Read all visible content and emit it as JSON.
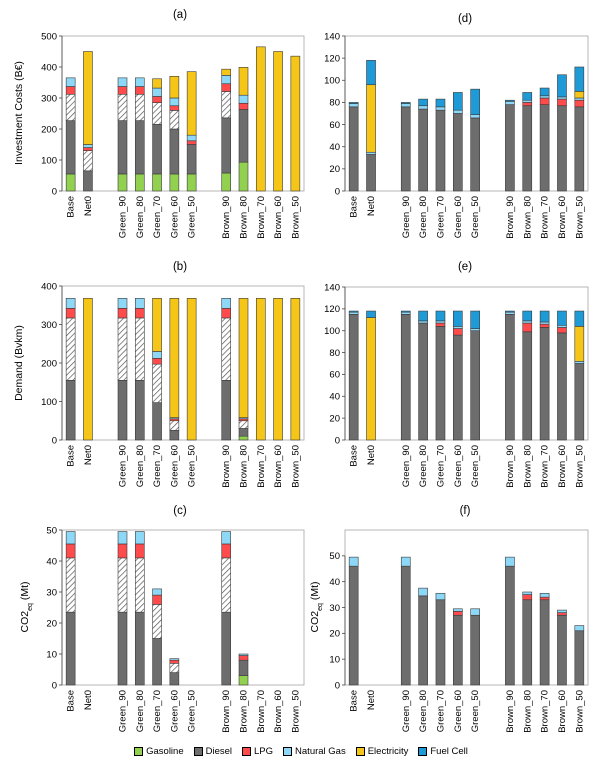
{
  "colors": {
    "Gasoline": "#92d050",
    "Diesel": "#6d6d6d",
    "Diesel_hatched": "hatched",
    "LPG": "#ff4b4b",
    "Natural Gas": "#8dd7f7",
    "Electricity": "#f5c518",
    "Fuel Cell": "#1e9bd7"
  },
  "legend": [
    "Gasoline",
    "Diesel",
    "LPG",
    "Natural Gas",
    "Electricity",
    "Fuel Cell"
  ],
  "chart_data": [
    {
      "panel": "(a)",
      "type": "bar",
      "stacked": true,
      "ylabel": "Investment Costs (B€)",
      "ylim": [
        0,
        500
      ],
      "yticks": [
        0,
        100,
        200,
        300,
        400,
        500
      ],
      "categories": [
        "Base",
        "Net0",
        "",
        "Green_90",
        "Green_80",
        "Green_70",
        "Green_60",
        "Green_50",
        "",
        "Brown_90",
        "Brown_80",
        "Brown_70",
        "Brown_60",
        "Brown_50"
      ],
      "series": [
        {
          "name": "Gasoline",
          "values": [
            55,
            0,
            0,
            55,
            55,
            55,
            55,
            55,
            0,
            58,
            93,
            0,
            0,
            0
          ]
        },
        {
          "name": "Diesel",
          "values": [
            172,
            65,
            0,
            172,
            172,
            160,
            145,
            95,
            0,
            178,
            170,
            0,
            0,
            0
          ]
        },
        {
          "name": "Diesel (hatched)",
          "values": [
            85,
            65,
            0,
            85,
            85,
            70,
            60,
            0,
            0,
            85,
            0,
            0,
            0,
            0
          ]
        },
        {
          "name": "LPG",
          "values": [
            25,
            10,
            0,
            25,
            25,
            20,
            15,
            12,
            0,
            25,
            20,
            0,
            0,
            0
          ]
        },
        {
          "name": "Natural Gas",
          "values": [
            28,
            10,
            0,
            28,
            28,
            27,
            25,
            18,
            0,
            27,
            26,
            0,
            0,
            0
          ]
        },
        {
          "name": "Electricity",
          "values": [
            0,
            300,
            0,
            0,
            0,
            30,
            70,
            205,
            0,
            20,
            90,
            465,
            450,
            435
          ]
        },
        {
          "name": "Fuel Cell",
          "values": [
            0,
            0,
            0,
            0,
            0,
            0,
            0,
            0,
            0,
            0,
            0,
            0,
            0,
            0
          ]
        }
      ]
    },
    {
      "panel": "(d)",
      "type": "bar",
      "stacked": true,
      "ylabel": "",
      "ylim": [
        0,
        140
      ],
      "yticks": [
        0,
        20,
        40,
        60,
        80,
        100,
        120,
        140
      ],
      "categories": [
        "Base",
        "Net0",
        "",
        "Green_90",
        "Green_80",
        "Green_70",
        "Green_60",
        "Green_50",
        "",
        "Brown_90",
        "Brown_80",
        "Brown_70",
        "Brown_60",
        "Brown_50"
      ],
      "series": [
        {
          "name": "Gasoline",
          "values": [
            0,
            0,
            0,
            0,
            0,
            0,
            0,
            0,
            0,
            0,
            0,
            0,
            0,
            0
          ]
        },
        {
          "name": "Diesel",
          "values": [
            76,
            33,
            0,
            76,
            74,
            73,
            70,
            66,
            0,
            78,
            77,
            78,
            77,
            76
          ]
        },
        {
          "name": "Diesel (hatched)",
          "values": [
            0,
            0,
            0,
            0,
            0,
            0,
            0,
            0,
            0,
            0,
            0,
            0,
            0,
            0
          ]
        },
        {
          "name": "LPG",
          "values": [
            0,
            0,
            0,
            0,
            0,
            0,
            0,
            0,
            0,
            0,
            3,
            6,
            6,
            6
          ]
        },
        {
          "name": "Natural Gas",
          "values": [
            3,
            2,
            0,
            3,
            3,
            3,
            3,
            3,
            0,
            3,
            2,
            2,
            2,
            2
          ]
        },
        {
          "name": "Electricity",
          "values": [
            0,
            61,
            0,
            0,
            0,
            0,
            0,
            0,
            0,
            0,
            0,
            0,
            0,
            6
          ]
        },
        {
          "name": "Fuel Cell",
          "values": [
            1,
            22,
            0,
            1,
            6,
            7,
            16,
            23,
            0,
            1,
            7,
            7,
            20,
            22
          ]
        }
      ]
    },
    {
      "panel": "(b)",
      "type": "bar",
      "stacked": true,
      "ylabel": "Demand (Bvkm)",
      "ylim": [
        0,
        400
      ],
      "yticks": [
        0,
        100,
        200,
        300,
        400
      ],
      "categories": [
        "Base",
        "Net0",
        "",
        "Green_90",
        "Green_80",
        "Green_70",
        "Green_60",
        "Green_50",
        "",
        "Brown_90",
        "Brown_80",
        "Brown_70",
        "Brown_60",
        "Brown_50"
      ],
      "series": [
        {
          "name": "Gasoline",
          "values": [
            0,
            0,
            0,
            0,
            0,
            0,
            0,
            0,
            0,
            0,
            10,
            0,
            0,
            0
          ]
        },
        {
          "name": "Diesel",
          "values": [
            155,
            0,
            0,
            155,
            155,
            97,
            25,
            0,
            0,
            155,
            20,
            0,
            0,
            0
          ]
        },
        {
          "name": "Diesel (hatched)",
          "values": [
            162,
            0,
            0,
            162,
            162,
            100,
            25,
            0,
            0,
            162,
            20,
            0,
            0,
            0
          ]
        },
        {
          "name": "LPG",
          "values": [
            25,
            0,
            0,
            25,
            25,
            15,
            5,
            0,
            0,
            25,
            5,
            0,
            0,
            0
          ]
        },
        {
          "name": "Natural Gas",
          "values": [
            26,
            0,
            0,
            26,
            26,
            18,
            3,
            0,
            0,
            26,
            3,
            0,
            0,
            0
          ]
        },
        {
          "name": "Electricity",
          "values": [
            0,
            368,
            0,
            0,
            0,
            138,
            310,
            368,
            0,
            0,
            310,
            368,
            368,
            368
          ]
        },
        {
          "name": "Fuel Cell",
          "values": [
            0,
            0,
            0,
            0,
            0,
            0,
            0,
            0,
            0,
            0,
            0,
            0,
            0,
            0
          ]
        }
      ]
    },
    {
      "panel": "(e)",
      "type": "bar",
      "stacked": true,
      "ylabel": "",
      "ylim": [
        0,
        140
      ],
      "yticks": [
        0,
        20,
        40,
        60,
        80,
        100,
        120,
        140
      ],
      "categories": [
        "Base",
        "Net0",
        "",
        "Green_90",
        "Green_80",
        "Green_70",
        "Green_60",
        "Green_50",
        "",
        "Brown_90",
        "Brown_80",
        "Brown_70",
        "Brown_60",
        "Brown_50"
      ],
      "series": [
        {
          "name": "Gasoline",
          "values": [
            0,
            0,
            0,
            0,
            0,
            0,
            0,
            0,
            0,
            0,
            0,
            0,
            0,
            0
          ]
        },
        {
          "name": "Diesel",
          "values": [
            115,
            0,
            0,
            115,
            107,
            104,
            96,
            100,
            0,
            115,
            99,
            103,
            98,
            70
          ]
        },
        {
          "name": "Diesel (hatched)",
          "values": [
            0,
            0,
            0,
            0,
            0,
            0,
            0,
            0,
            0,
            0,
            0,
            0,
            0,
            0
          ]
        },
        {
          "name": "LPG",
          "values": [
            0,
            0,
            0,
            0,
            0,
            3,
            6,
            0,
            0,
            0,
            8,
            3,
            5,
            0
          ]
        },
        {
          "name": "Natural Gas",
          "values": [
            2,
            0,
            0,
            2,
            2,
            2,
            2,
            2,
            0,
            2,
            2,
            2,
            2,
            2
          ]
        },
        {
          "name": "Electricity",
          "values": [
            0,
            112,
            0,
            0,
            0,
            0,
            0,
            0,
            0,
            0,
            0,
            0,
            0,
            32
          ]
        },
        {
          "name": "Fuel Cell",
          "values": [
            1,
            6,
            0,
            1,
            9,
            9,
            14,
            16,
            0,
            1,
            9,
            10,
            13,
            14
          ]
        }
      ]
    },
    {
      "panel": "(c)",
      "type": "bar",
      "stacked": true,
      "ylabel": "CO2eq (Mt)",
      "ylim": [
        0,
        50
      ],
      "yticks": [
        0,
        10,
        20,
        30,
        40,
        50
      ],
      "categories": [
        "Base",
        "Net0",
        "",
        "Green_90",
        "Green_80",
        "Green_70",
        "Green_60",
        "Green_50",
        "",
        "Brown_90",
        "Brown_80",
        "Brown_70",
        "Brown_60",
        "Brown_50"
      ],
      "series": [
        {
          "name": "Gasoline",
          "values": [
            0,
            0,
            0,
            0,
            0,
            0,
            0,
            0,
            0,
            0,
            3,
            0,
            0,
            0
          ]
        },
        {
          "name": "Diesel",
          "values": [
            23.5,
            0,
            0,
            23.5,
            23.5,
            15,
            4,
            0,
            0,
            23.5,
            5,
            0,
            0,
            0
          ]
        },
        {
          "name": "Diesel (hatched)",
          "values": [
            17.5,
            0,
            0,
            17.5,
            17.5,
            11,
            3,
            0,
            0,
            17.5,
            0,
            0,
            0,
            0
          ]
        },
        {
          "name": "LPG",
          "values": [
            4.5,
            0,
            0,
            4.5,
            4.5,
            3,
            1,
            0,
            0,
            4.5,
            1.5,
            0,
            0,
            0
          ]
        },
        {
          "name": "Natural Gas",
          "values": [
            4,
            0,
            0,
            4,
            4,
            2,
            0.5,
            0,
            0,
            4,
            0.5,
            0,
            0,
            0
          ]
        },
        {
          "name": "Electricity",
          "values": [
            0,
            0,
            0,
            0,
            0,
            0,
            0,
            0,
            0,
            0,
            0,
            0,
            0,
            0
          ]
        },
        {
          "name": "Fuel Cell",
          "values": [
            0,
            0,
            0,
            0,
            0,
            0,
            0,
            0,
            0,
            0,
            0,
            0,
            0,
            0
          ]
        }
      ]
    },
    {
      "panel": "(f)",
      "type": "bar",
      "stacked": true,
      "ylabel": "CO2eq (Mt)",
      "ylim": [
        0,
        60
      ],
      "yticks": [
        0,
        10,
        20,
        30,
        40,
        50
      ],
      "categories": [
        "Base",
        "Net0",
        "",
        "Green_90",
        "Green_80",
        "Green_70",
        "Green_60",
        "Green_50",
        "",
        "Brown_90",
        "Brown_80",
        "Brown_70",
        "Brown_60",
        "Brown_50"
      ],
      "series": [
        {
          "name": "Gasoline",
          "values": [
            0,
            0,
            0,
            0,
            0,
            0,
            0,
            0,
            0,
            0,
            0,
            0,
            0,
            0
          ]
        },
        {
          "name": "Diesel",
          "values": [
            46,
            0,
            0,
            46,
            34.5,
            33,
            27,
            27,
            0,
            46,
            33,
            33,
            27,
            21
          ]
        },
        {
          "name": "Diesel (hatched)",
          "values": [
            0,
            0,
            0,
            0,
            0,
            0,
            0,
            0,
            0,
            0,
            0,
            0,
            0,
            0
          ]
        },
        {
          "name": "LPG",
          "values": [
            0,
            0,
            0,
            0,
            0,
            0,
            1.5,
            0,
            0,
            0,
            2,
            1,
            1,
            0
          ]
        },
        {
          "name": "Natural Gas",
          "values": [
            3.5,
            0,
            0,
            3.5,
            3,
            2.5,
            1,
            2.5,
            0,
            3.5,
            1,
            1.5,
            1,
            2
          ]
        },
        {
          "name": "Electricity",
          "values": [
            0,
            0,
            0,
            0,
            0,
            0,
            0,
            0,
            0,
            0,
            0,
            0,
            0,
            0
          ]
        },
        {
          "name": "Fuel Cell",
          "values": [
            0,
            0,
            0,
            0,
            0,
            0,
            0,
            0,
            0,
            0,
            0,
            0,
            0,
            0
          ]
        }
      ]
    }
  ]
}
